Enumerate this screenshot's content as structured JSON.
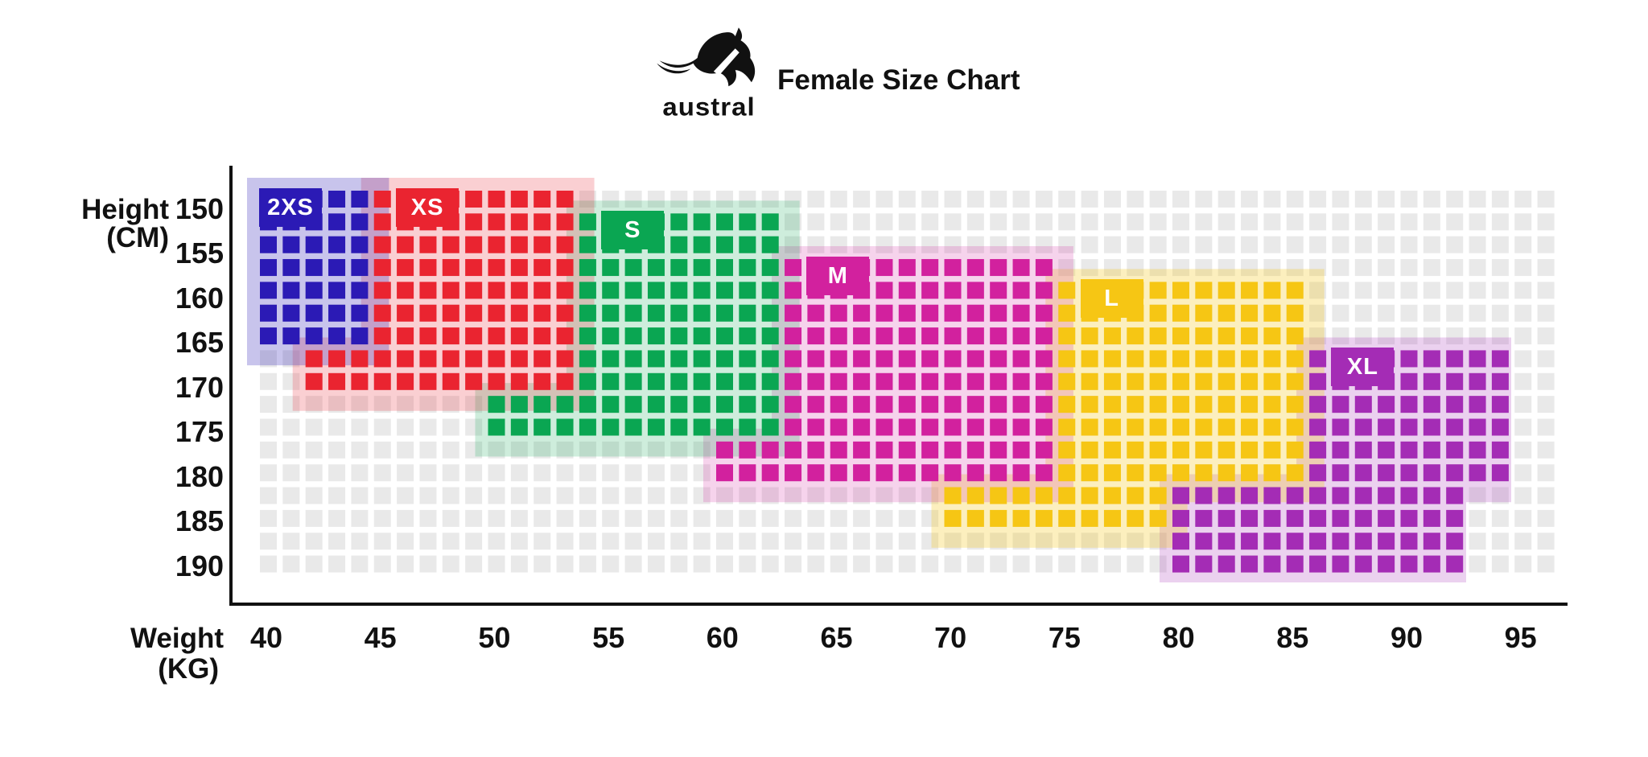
{
  "brand": {
    "name": "austral",
    "logo_icon": "kangaroo-logo"
  },
  "title": "Female Size Chart",
  "axes": {
    "y_title_line1": "Height",
    "y_title_line2": "(CM)",
    "x_title_line1": "Weight",
    "x_title_line2": "(KG)",
    "y_ticks": [
      "150",
      "155",
      "160",
      "165",
      "170",
      "175",
      "180",
      "185",
      "190"
    ],
    "x_ticks": [
      "40",
      "45",
      "50",
      "55",
      "60",
      "65",
      "70",
      "75",
      "80",
      "85",
      "90",
      "95"
    ]
  },
  "colors": {
    "background": "#ffffff",
    "grid_square": "#e9e9e9",
    "axis": "#111111",
    "badge_text": "#ffffff"
  },
  "chart_data": {
    "type": "heatmap",
    "title": "Female Size Chart",
    "xlabel": "Weight (KG)",
    "ylabel": "Height (CM)",
    "x_range": [
      40,
      96
    ],
    "y_range": [
      150,
      190
    ],
    "x_ticks": [
      40,
      45,
      50,
      55,
      60,
      65,
      70,
      75,
      80,
      85,
      90,
      95
    ],
    "y_ticks": [
      150,
      155,
      160,
      165,
      170,
      175,
      180,
      185,
      190
    ],
    "cell_kg": 1,
    "cell_cm": 2.5,
    "grid_cols": 57,
    "grid_rows": 17,
    "sizes": [
      {
        "label": "2XS",
        "color": "#2b1ab5",
        "overlay_opacity": 0.26,
        "badge": {
          "col": 1,
          "row": 1
        },
        "main": {
          "cols": [
            1,
            5
          ],
          "rows": [
            1,
            7
          ],
          "weight_kg": [
            40,
            44
          ],
          "height_cm": [
            150,
            165
          ]
        },
        "ext": null,
        "approx_range": "40-44 kg, 150-165 cm"
      },
      {
        "label": "XS",
        "color": "#ea2430",
        "overlay_opacity": 0.22,
        "badge": {
          "col": 7,
          "row": 1
        },
        "main": {
          "cols": [
            6,
            14
          ],
          "rows": [
            1,
            9
          ],
          "weight_kg": [
            45,
            53
          ],
          "height_cm": [
            150,
            170
          ]
        },
        "ext": {
          "cols": [
            3,
            5
          ],
          "rows": [
            8,
            9
          ],
          "weight_kg": [
            42,
            44
          ],
          "height_cm": [
            167.5,
            170
          ]
        },
        "approx_range": "42-53 kg, 150-170 cm"
      },
      {
        "label": "S",
        "color": "#0aa652",
        "overlay_opacity": 0.2,
        "badge": {
          "col": 16,
          "row": 2
        },
        "main": {
          "cols": [
            15,
            23
          ],
          "rows": [
            2,
            11
          ],
          "weight_kg": [
            54,
            62
          ],
          "height_cm": [
            152.5,
            175
          ]
        },
        "ext": {
          "cols": [
            11,
            14
          ],
          "rows": [
            10,
            11
          ],
          "weight_kg": [
            50,
            53
          ],
          "height_cm": [
            172.5,
            175
          ]
        },
        "approx_range": "50-62 kg, 152.5-175 cm"
      },
      {
        "label": "M",
        "color": "#d2219e",
        "overlay_opacity": 0.2,
        "badge": {
          "col": 25,
          "row": 4
        },
        "main": {
          "cols": [
            24,
            35
          ],
          "rows": [
            4,
            13
          ],
          "weight_kg": [
            63,
            74
          ],
          "height_cm": [
            157.5,
            180
          ]
        },
        "ext": {
          "cols": [
            21,
            23
          ],
          "rows": [
            12,
            13
          ],
          "weight_kg": [
            60,
            62
          ],
          "height_cm": [
            177.5,
            180
          ]
        },
        "approx_range": "60-74 kg, 157.5-180 cm"
      },
      {
        "label": "L",
        "color": "#f6c614",
        "overlay_opacity": 0.28,
        "badge": {
          "col": 37,
          "row": 5
        },
        "main": {
          "cols": [
            36,
            46
          ],
          "rows": [
            5,
            13
          ],
          "weight_kg": [
            75,
            85
          ],
          "height_cm": [
            160,
            180
          ]
        },
        "ext": {
          "cols": [
            31,
            40
          ],
          "rows": [
            14,
            15
          ],
          "weight_kg": [
            70,
            79
          ],
          "height_cm": [
            182.5,
            185
          ]
        },
        "approx_range": "70-85 kg, 160-185 cm"
      },
      {
        "label": "XL",
        "color": "#a42cb5",
        "overlay_opacity": 0.22,
        "badge": {
          "col": 48,
          "row": 8
        },
        "main": {
          "cols": [
            47,
            55
          ],
          "rows": [
            8,
            13
          ],
          "weight_kg": [
            86,
            94
          ],
          "height_cm": [
            167.5,
            180
          ]
        },
        "ext": {
          "cols": [
            41,
            53
          ],
          "rows": [
            14,
            17
          ],
          "weight_kg": [
            80,
            92
          ],
          "height_cm": [
            182.5,
            190
          ]
        },
        "approx_range": "80-94 kg, 167.5-190 cm"
      }
    ]
  }
}
